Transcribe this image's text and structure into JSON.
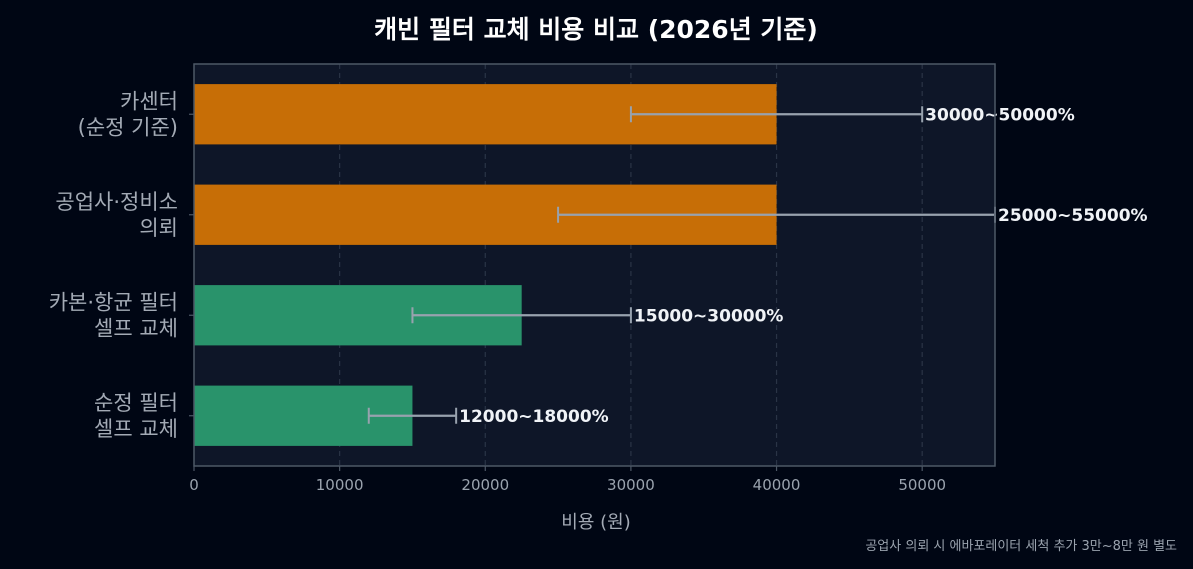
{
  "chart_data": {
    "type": "bar",
    "orientation": "horizontal",
    "title": "캐빈 필터 교체 비용 비교 (2026년 기준)",
    "xlabel": "비용 (원)",
    "ylabel": "",
    "xlim": [
      0,
      55000
    ],
    "xticks": [
      0,
      10000,
      20000,
      30000,
      40000,
      50000
    ],
    "grid": "x-dashed",
    "categories": [
      [
        "카센터",
        "(순정 기준)"
      ],
      [
        "공업사·정비소",
        "의뢰"
      ],
      [
        "카본·항균 필터",
        "셀프 교체"
      ],
      [
        "순정 필터",
        "셀프 교체"
      ]
    ],
    "values": [
      40000,
      40000,
      22500,
      15000
    ],
    "ranges": [
      [
        30000,
        50000
      ],
      [
        25000,
        55000
      ],
      [
        15000,
        30000
      ],
      [
        12000,
        18000
      ]
    ],
    "data_labels": [
      "30000~50000%",
      "25000~55000%",
      "15000~30000%",
      "12000~18000%"
    ],
    "colors": [
      "#c76e06",
      "#c76e06",
      "#29936b",
      "#29936b"
    ],
    "errorbar_color": "#98a2ae",
    "note": "공업사 의뢰 시 에바포레이터 세척 추가 3만~8만 원 별도"
  },
  "theme": {
    "background": "#000614",
    "plot_background": "#0e1628",
    "frame": "#4d5866",
    "grid": "#2a3446"
  }
}
